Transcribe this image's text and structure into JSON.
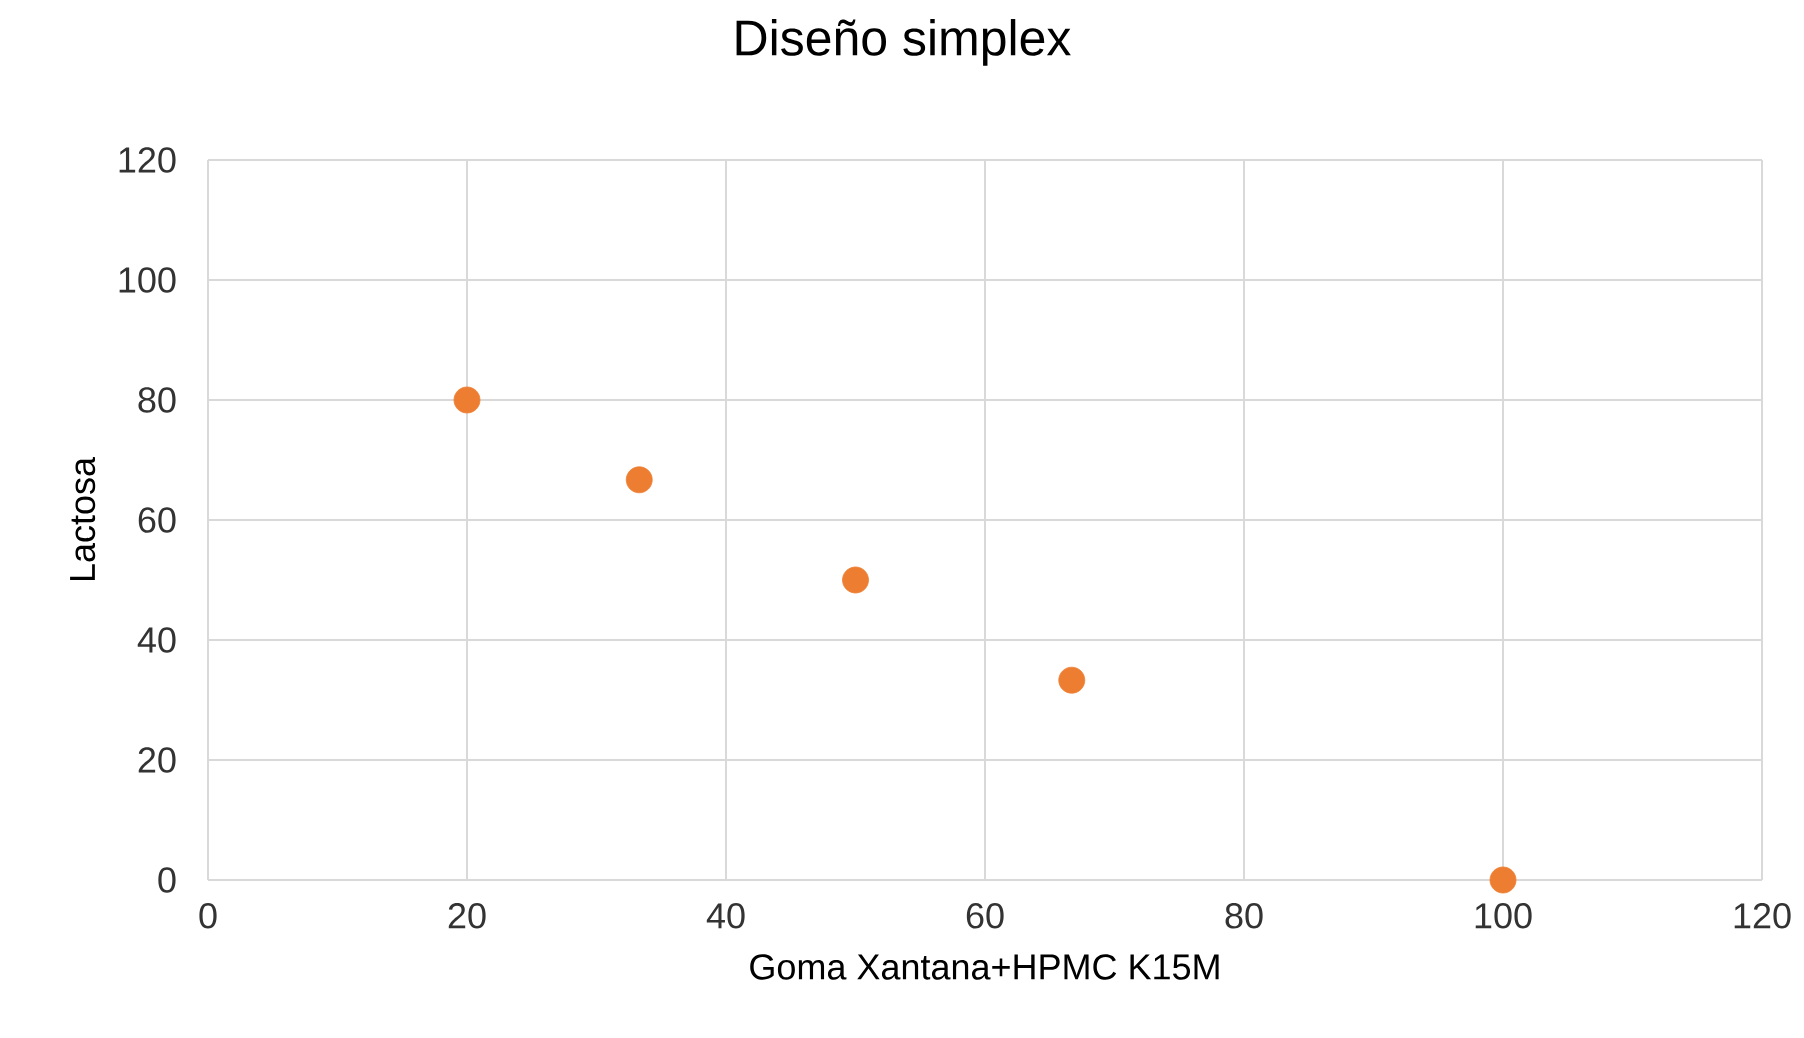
{
  "chart_data": {
    "type": "scatter",
    "title": "Diseño simplex",
    "xlabel": "Goma Xantana+HPMC K15M",
    "ylabel": "Lactosa",
    "x": [
      20,
      33.3,
      50,
      66.7,
      100
    ],
    "values": [
      80,
      66.7,
      50,
      33.3,
      0
    ],
    "color": "#ed7d31",
    "marker": "circle",
    "grid": true,
    "xlim": [
      0,
      120
    ],
    "ylim": [
      0,
      120
    ],
    "xticks": [
      0,
      20,
      40,
      60,
      80,
      100,
      120
    ],
    "yticks": [
      0,
      20,
      40,
      60,
      80,
      100,
      120
    ]
  }
}
